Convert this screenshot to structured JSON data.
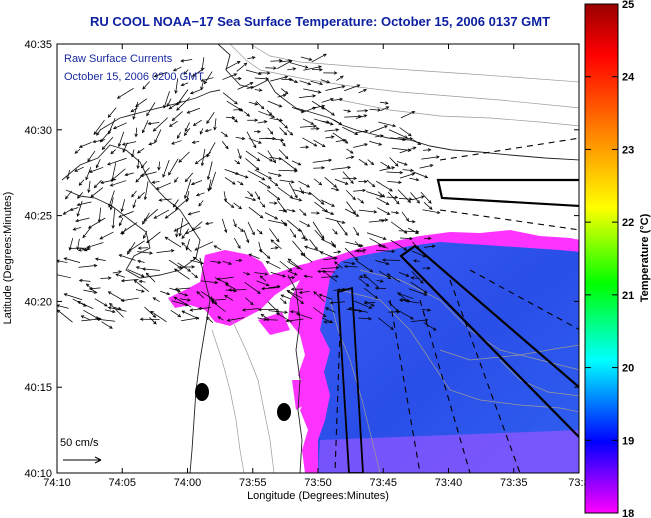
{
  "title": "RU COOL  NOAA−17  Sea Surface Temperature:  October 15, 2006 0137 GMT",
  "legend": {
    "line1": "Raw Surface Currents",
    "line2": "October 15, 2006 0200 GMT"
  },
  "scale_label": "50 cm/s",
  "axes": {
    "xlabel": "Longitude (Degrees:Minutes)",
    "ylabel": "Latitude (Degrees:Minutes)",
    "xticks": [
      "74:10",
      "74:05",
      "74:00",
      "73:55",
      "73:50",
      "73:45",
      "73:40",
      "73:35",
      "73:3"
    ],
    "yticks": [
      "40:35",
      "40:30",
      "40:25",
      "40:20",
      "40:15",
      "40:10"
    ]
  },
  "colorbar": {
    "label": "Temperature (°C)",
    "ticks": [
      "25",
      "24",
      "23",
      "22",
      "21",
      "20",
      "19",
      "18"
    ],
    "range": [
      18,
      25
    ],
    "colors": [
      "#ff00ff",
      "#0000ff",
      "#00ffff",
      "#00ff00",
      "#ffff00",
      "#ff8000",
      "#ff0000",
      "#990000"
    ]
  },
  "colors": {
    "water_warm": "#2a55f0",
    "water_cold": "#ff33ff",
    "title": "#0b1fa0"
  }
}
